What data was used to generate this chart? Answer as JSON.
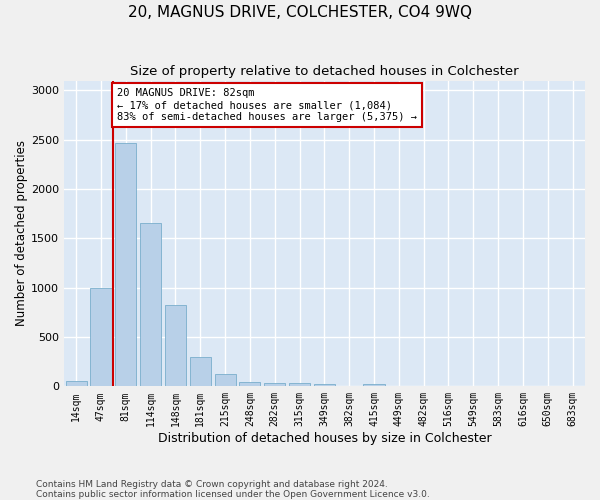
{
  "title": "20, MAGNUS DRIVE, COLCHESTER, CO4 9WQ",
  "subtitle": "Size of property relative to detached houses in Colchester",
  "xlabel": "Distribution of detached houses by size in Colchester",
  "ylabel": "Number of detached properties",
  "categories": [
    "14sqm",
    "47sqm",
    "81sqm",
    "114sqm",
    "148sqm",
    "181sqm",
    "215sqm",
    "248sqm",
    "282sqm",
    "315sqm",
    "349sqm",
    "382sqm",
    "415sqm",
    "449sqm",
    "482sqm",
    "516sqm",
    "549sqm",
    "583sqm",
    "616sqm",
    "650sqm",
    "683sqm"
  ],
  "values": [
    50,
    1000,
    2470,
    1660,
    820,
    300,
    130,
    45,
    30,
    35,
    20,
    0,
    25,
    0,
    0,
    0,
    0,
    0,
    0,
    0,
    0
  ],
  "bar_color": "#b8d0e8",
  "bar_edge_color": "#7aaecc",
  "vline_x_index": 1.5,
  "vline_color": "#cc0000",
  "annotation_text": "20 MAGNUS DRIVE: 82sqm\n← 17% of detached houses are smaller (1,084)\n83% of semi-detached houses are larger (5,375) →",
  "annotation_box_facecolor": "#ffffff",
  "annotation_box_edgecolor": "#cc0000",
  "ylim": [
    0,
    3100
  ],
  "yticks": [
    0,
    500,
    1000,
    1500,
    2000,
    2500,
    3000
  ],
  "footer_line1": "Contains HM Land Registry data © Crown copyright and database right 2024.",
  "footer_line2": "Contains public sector information licensed under the Open Government Licence v3.0.",
  "plot_bg_color": "#dce8f5",
  "fig_bg_color": "#f0f0f0",
  "grid_color": "#ffffff",
  "title_fontsize": 11,
  "subtitle_fontsize": 9.5,
  "xlabel_fontsize": 9,
  "ylabel_fontsize": 8.5,
  "tick_fontsize": 7,
  "annotation_fontsize": 7.5,
  "footer_fontsize": 6.5
}
